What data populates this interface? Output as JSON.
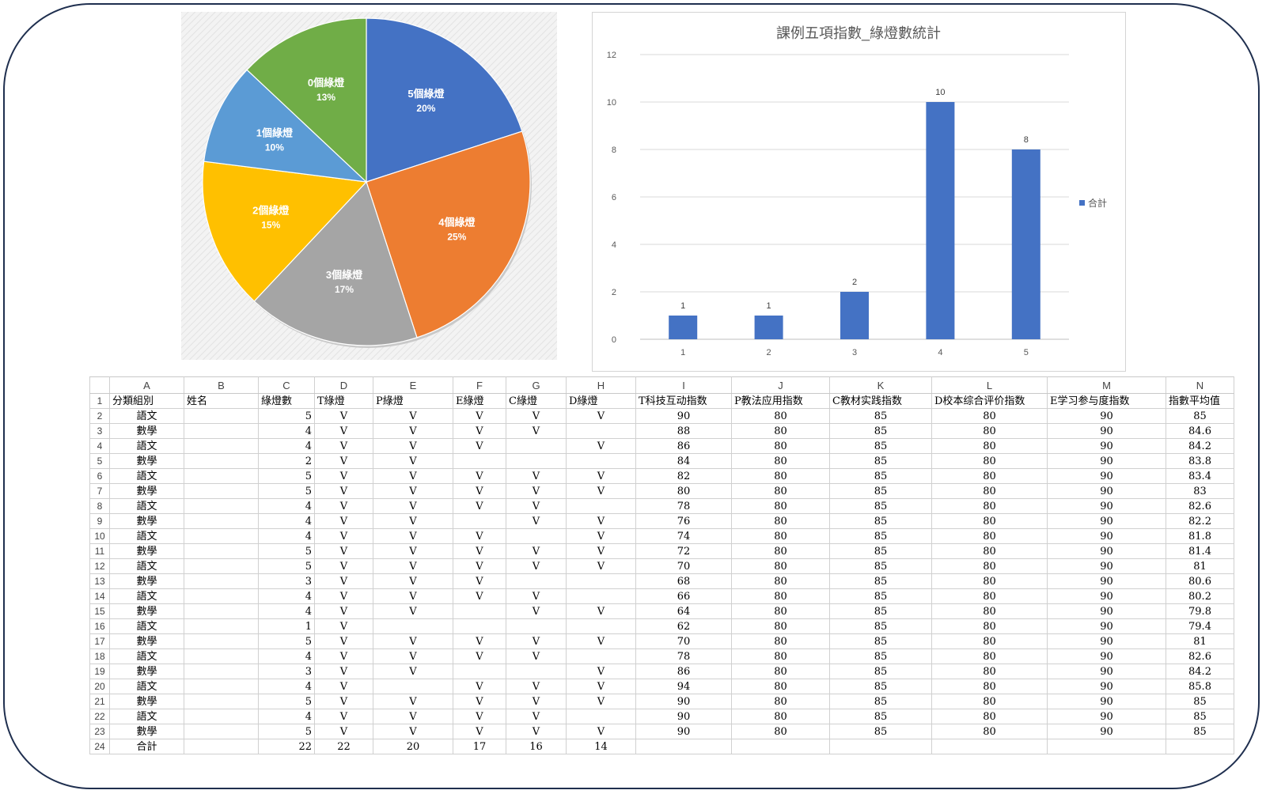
{
  "chart_data": [
    {
      "type": "pie",
      "slices": [
        {
          "label": "5個綠燈",
          "percent": "20%",
          "value": 20,
          "color": "#4472C4"
        },
        {
          "label": "4個綠燈",
          "percent": "25%",
          "value": 25,
          "color": "#ED7D31"
        },
        {
          "label": "3個綠燈",
          "percent": "17%",
          "value": 17,
          "color": "#A5A5A5"
        },
        {
          "label": "2個綠燈",
          "percent": "15%",
          "value": 15,
          "color": "#FFC000"
        },
        {
          "label": "1個綠燈",
          "percent": "10%",
          "value": 10,
          "color": "#5B9BD5"
        },
        {
          "label": "0個綠燈",
          "percent": "13%",
          "value": 13,
          "color": "#70AD47"
        }
      ]
    },
    {
      "type": "bar",
      "title": "課例五項指數_綠燈數統計",
      "categories": [
        "1",
        "2",
        "3",
        "4",
        "5"
      ],
      "series": [
        {
          "name": "合計",
          "values": [
            1,
            1,
            2,
            10,
            8
          ],
          "color": "#4472C4"
        }
      ],
      "yticks": [
        "0",
        "2",
        "4",
        "6",
        "8",
        "10",
        "12"
      ],
      "ylim": [
        0,
        12
      ],
      "legend": "right",
      "grid": true
    }
  ],
  "sheet": {
    "columns": [
      "A",
      "B",
      "C",
      "D",
      "E",
      "F",
      "G",
      "H",
      "I",
      "J",
      "K",
      "L",
      "M",
      "N"
    ],
    "selected_column": "M",
    "header_row": [
      "分類組別",
      "姓名",
      "綠燈數",
      "T綠燈",
      "P綠燈",
      "E綠燈",
      "C綠燈",
      "D綠燈",
      "T科技互动指数",
      "P教法应用指数",
      "C教材实践指数",
      "D校本综合评价指数",
      "E学习参与度指数",
      "指數平均值"
    ],
    "rows": [
      [
        "語文",
        "",
        "5",
        "V",
        "V",
        "V",
        "V",
        "V",
        "90",
        "80",
        "85",
        "80",
        "90",
        "85"
      ],
      [
        "數學",
        "",
        "4",
        "V",
        "V",
        "V",
        "V",
        "",
        "88",
        "80",
        "85",
        "80",
        "90",
        "84.6"
      ],
      [
        "語文",
        "",
        "4",
        "V",
        "V",
        "V",
        "",
        "V",
        "86",
        "80",
        "85",
        "80",
        "90",
        "84.2"
      ],
      [
        "數學",
        "",
        "2",
        "V",
        "V",
        "",
        "",
        "",
        "84",
        "80",
        "85",
        "80",
        "90",
        "83.8"
      ],
      [
        "語文",
        "",
        "5",
        "V",
        "V",
        "V",
        "V",
        "V",
        "82",
        "80",
        "85",
        "80",
        "90",
        "83.4"
      ],
      [
        "數學",
        "",
        "5",
        "V",
        "V",
        "V",
        "V",
        "V",
        "80",
        "80",
        "85",
        "80",
        "90",
        "83"
      ],
      [
        "語文",
        "",
        "4",
        "V",
        "V",
        "V",
        "V",
        "",
        "78",
        "80",
        "85",
        "80",
        "90",
        "82.6"
      ],
      [
        "數學",
        "",
        "4",
        "V",
        "V",
        "",
        "V",
        "V",
        "76",
        "80",
        "85",
        "80",
        "90",
        "82.2"
      ],
      [
        "語文",
        "",
        "4",
        "V",
        "V",
        "V",
        "",
        "V",
        "74",
        "80",
        "85",
        "80",
        "90",
        "81.8"
      ],
      [
        "數學",
        "",
        "5",
        "V",
        "V",
        "V",
        "V",
        "V",
        "72",
        "80",
        "85",
        "80",
        "90",
        "81.4"
      ],
      [
        "語文",
        "",
        "5",
        "V",
        "V",
        "V",
        "V",
        "V",
        "70",
        "80",
        "85",
        "80",
        "90",
        "81"
      ],
      [
        "數學",
        "",
        "3",
        "V",
        "V",
        "V",
        "",
        "",
        "68",
        "80",
        "85",
        "80",
        "90",
        "80.6"
      ],
      [
        "語文",
        "",
        "4",
        "V",
        "V",
        "V",
        "V",
        "",
        "66",
        "80",
        "85",
        "80",
        "90",
        "80.2"
      ],
      [
        "數學",
        "",
        "4",
        "V",
        "V",
        "",
        "V",
        "V",
        "64",
        "80",
        "85",
        "80",
        "90",
        "79.8"
      ],
      [
        "語文",
        "",
        "1",
        "V",
        "",
        "",
        "",
        "",
        "62",
        "80",
        "85",
        "80",
        "90",
        "79.4"
      ],
      [
        "數學",
        "",
        "5",
        "V",
        "V",
        "V",
        "V",
        "V",
        "70",
        "80",
        "85",
        "80",
        "90",
        "81"
      ],
      [
        "語文",
        "",
        "4",
        "V",
        "V",
        "V",
        "V",
        "",
        "78",
        "80",
        "85",
        "80",
        "90",
        "82.6"
      ],
      [
        "數學",
        "",
        "3",
        "V",
        "V",
        "",
        "",
        "V",
        "86",
        "80",
        "85",
        "80",
        "90",
        "84.2"
      ],
      [
        "語文",
        "",
        "4",
        "V",
        "",
        "V",
        "V",
        "V",
        "94",
        "80",
        "85",
        "80",
        "90",
        "85.8"
      ],
      [
        "數學",
        "",
        "5",
        "V",
        "V",
        "V",
        "V",
        "V",
        "90",
        "80",
        "85",
        "80",
        "90",
        "85"
      ],
      [
        "語文",
        "",
        "4",
        "V",
        "V",
        "V",
        "V",
        "",
        "90",
        "80",
        "85",
        "80",
        "90",
        "85"
      ],
      [
        "數學",
        "",
        "5",
        "V",
        "V",
        "V",
        "V",
        "V",
        "90",
        "80",
        "85",
        "80",
        "90",
        "85"
      ]
    ],
    "total_row": [
      "合計",
      "",
      "22",
      "22",
      "20",
      "17",
      "16",
      "14",
      "",
      "",
      "",
      "",
      "",
      ""
    ]
  }
}
